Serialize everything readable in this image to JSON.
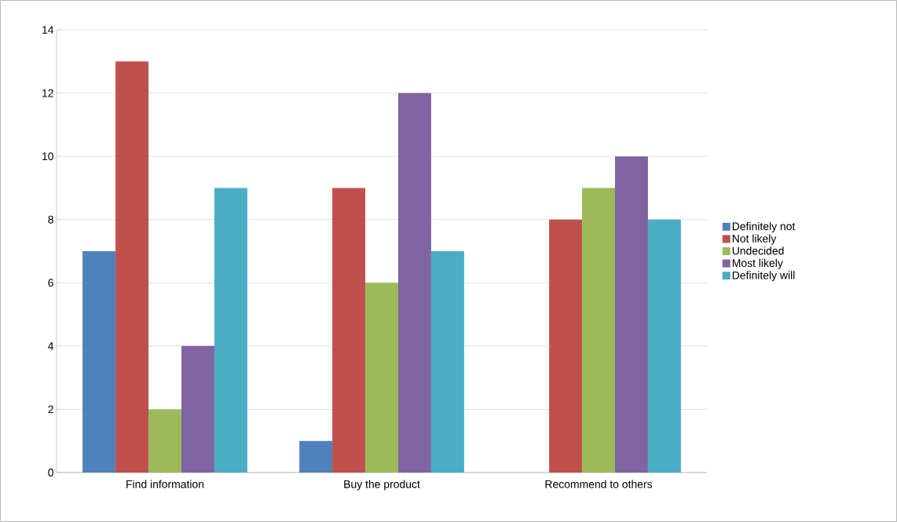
{
  "chart_data": {
    "type": "bar",
    "categories": [
      "Find information",
      "Buy the product",
      "Recommend to others"
    ],
    "series": [
      {
        "name": "Definitely not",
        "color": "#4f81bd",
        "values": [
          7,
          1,
          0
        ]
      },
      {
        "name": "Not likely",
        "color": "#c0504d",
        "values": [
          13,
          9,
          8
        ]
      },
      {
        "name": "Undecided",
        "color": "#9bbb59",
        "values": [
          2,
          6,
          9
        ]
      },
      {
        "name": "Most likely",
        "color": "#8064a2",
        "values": [
          4,
          12,
          10
        ]
      },
      {
        "name": "Definitely will",
        "color": "#4bacc6",
        "values": [
          9,
          7,
          8
        ]
      }
    ],
    "ylim": [
      0,
      14
    ],
    "yticks": [
      0,
      2,
      4,
      6,
      8,
      10,
      12,
      14
    ],
    "grid": "y",
    "legend": "right"
  }
}
